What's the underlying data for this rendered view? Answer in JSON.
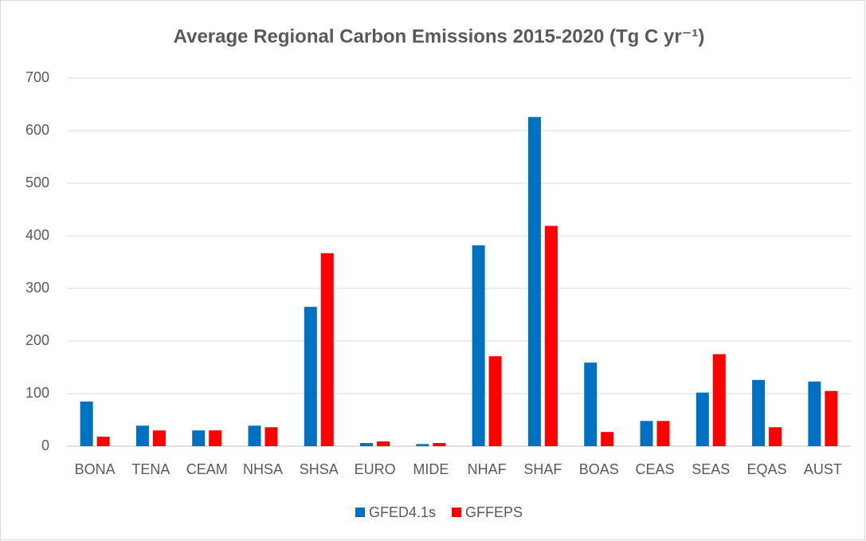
{
  "chart_data": {
    "type": "bar",
    "title": "Average Regional Carbon Emissions 2015-2020 (Tg C yr⁻¹)",
    "categories": [
      "BONA",
      "TENA",
      "CEAM",
      "NHSA",
      "SHSA",
      "EURO",
      "MIDE",
      "NHAF",
      "SHAF",
      "BOAS",
      "CEAS",
      "SEAS",
      "EQAS",
      "AUST"
    ],
    "series": [
      {
        "name": "GFED4.1s",
        "color": "#0070c0",
        "values": [
          85,
          39,
          30,
          39,
          265,
          6,
          4,
          382,
          626,
          159,
          48,
          102,
          126,
          123
        ]
      },
      {
        "name": "GFFEPS",
        "color": "#ff0000",
        "values": [
          18,
          30,
          30,
          36,
          367,
          9,
          6,
          171,
          419,
          27,
          48,
          175,
          36,
          105
        ]
      }
    ],
    "ylim": [
      0,
      700
    ],
    "yticks": [
      0,
      100,
      200,
      300,
      400,
      500,
      600,
      700
    ],
    "grid": true,
    "legend": "bottom"
  }
}
